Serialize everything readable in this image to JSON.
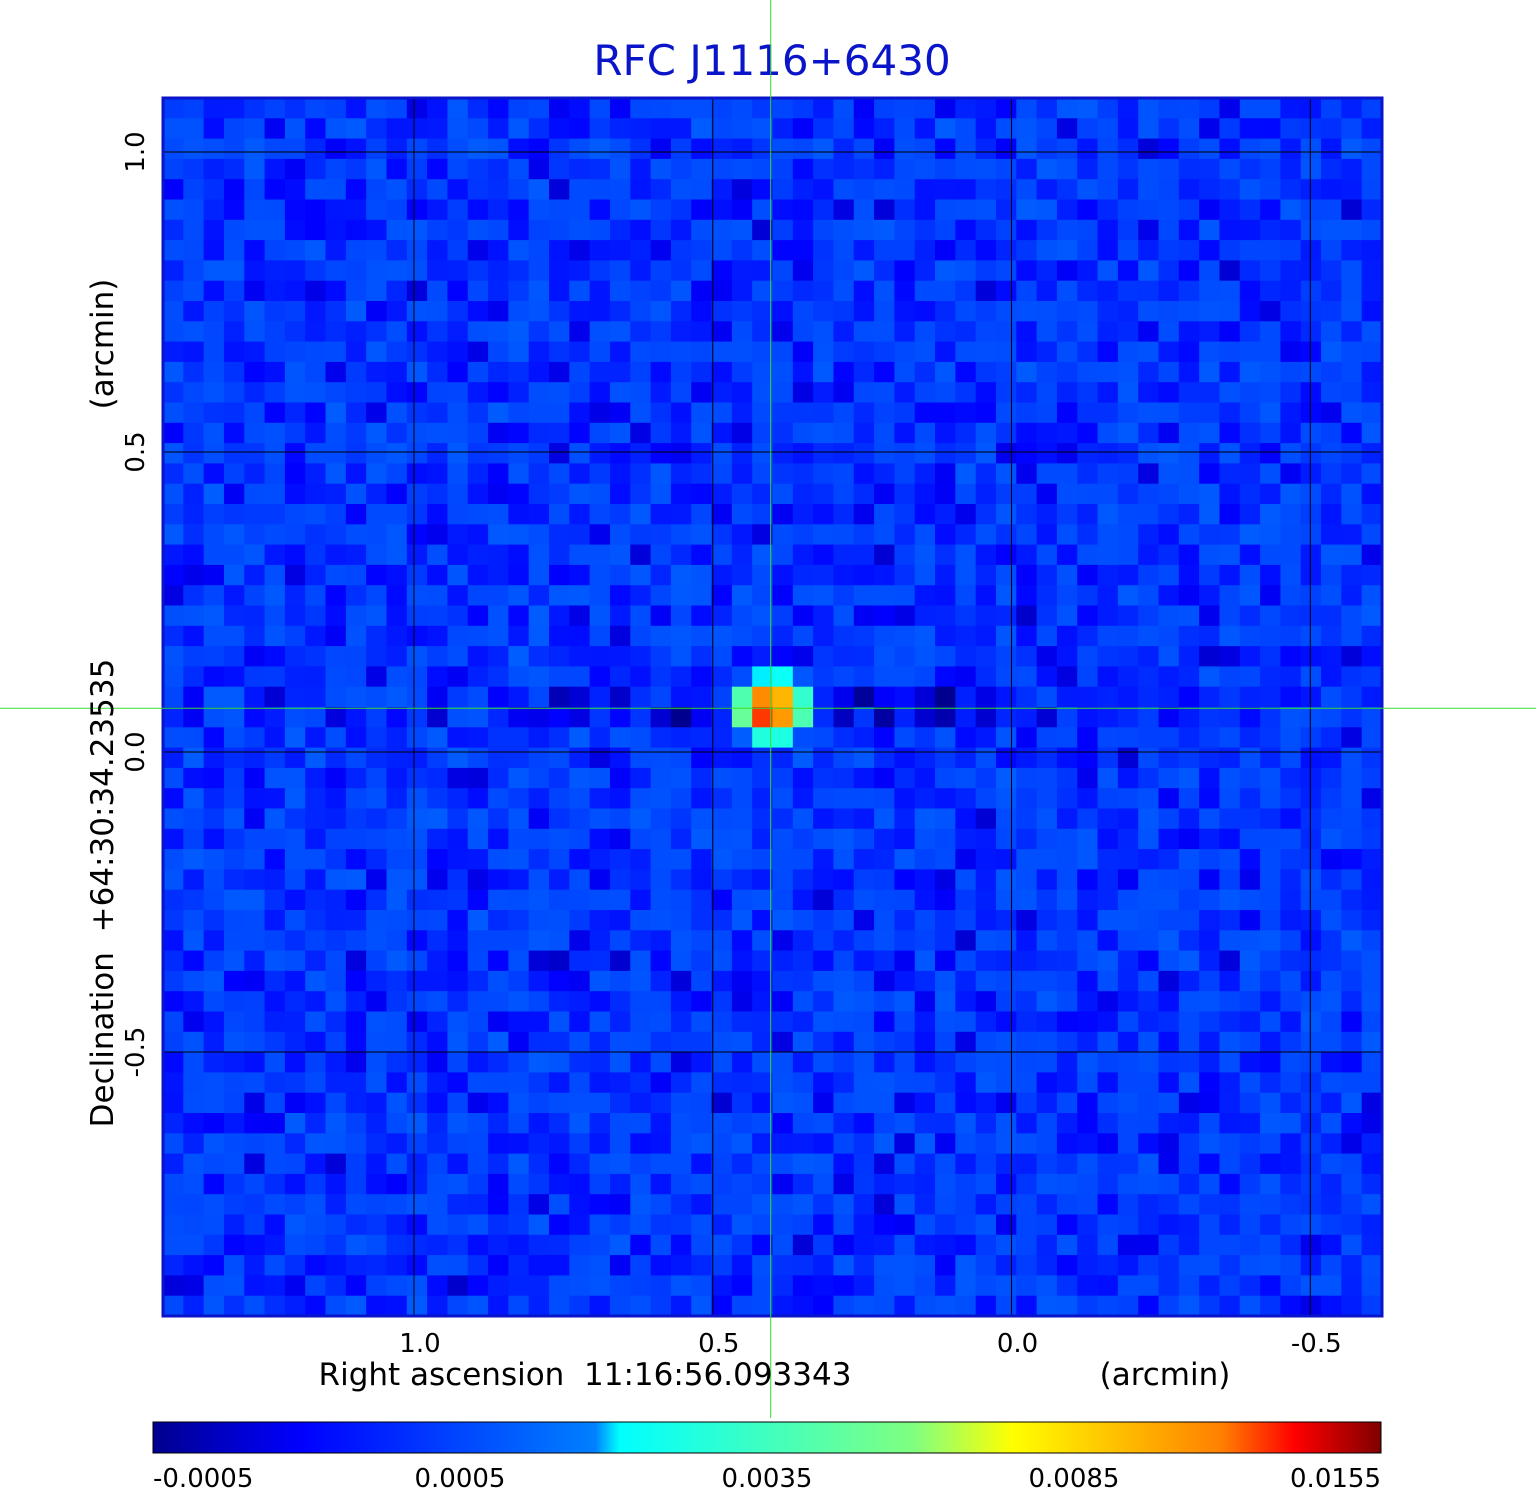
{
  "chart_data": {
    "type": "heatmap",
    "title": "RFC J1116+6430",
    "xlabel": "Right ascension  11:16:56.093343",
    "xunit": "(arcmin)",
    "ylabel": "Declination  +64:30:34.23535",
    "yunit": "(arcmin)",
    "x_ticks": [
      "1.0",
      "0.5",
      "0.0",
      "-0.5"
    ],
    "y_ticks": [
      "1.0",
      "0.5",
      "0.0",
      "-0.5"
    ],
    "xlim": [
      1.42,
      -0.62
    ],
    "ylim": [
      -0.94,
      1.09
    ],
    "grid": true,
    "crosshair": {
      "ra_offset": 0.403,
      "dec_offset": 0.073,
      "color": "#33dd33"
    },
    "source_peak": {
      "ra_offset": 0.403,
      "dec_offset": 0.073,
      "value": 0.0155
    },
    "noise_level": 0.0004,
    "colorbar": {
      "ticks": [
        "-0.0005",
        "0.0005",
        "0.0035",
        "0.0085",
        "0.0155"
      ],
      "tick_values": [
        -0.0005,
        0.0005,
        0.0035,
        0.0085,
        0.0155
      ],
      "colormap": "jet"
    },
    "colors": {
      "frame": "#0a14c8",
      "grid": "#000000",
      "background": "#ffffff"
    }
  }
}
